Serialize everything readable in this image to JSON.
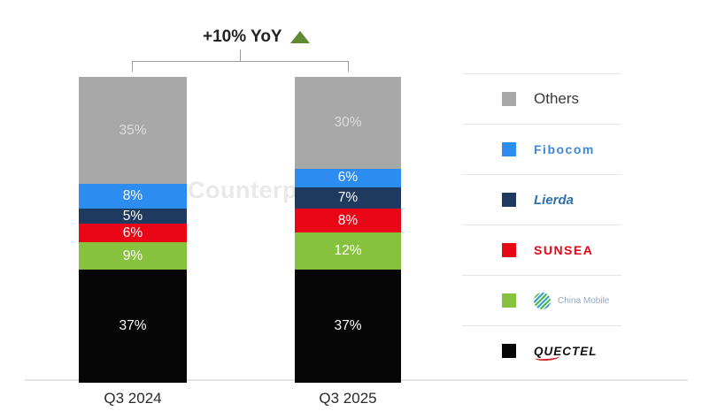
{
  "watermark": "Counterpoint",
  "annotation": {
    "label": "+10% YoY",
    "arrow_color": "#5e8b33"
  },
  "chart_data": {
    "type": "bar",
    "stacked": true,
    "title": "",
    "categories": [
      "Q3 2024",
      "Q3 2025"
    ],
    "series": [
      {
        "name": "Others",
        "color": "#a8a8a8",
        "label_color": "#dcdcdc",
        "values": [
          35,
          30
        ]
      },
      {
        "name": "Fibocom",
        "color": "#2d8cf0",
        "label_color": "#ffffff",
        "values": [
          8,
          6
        ]
      },
      {
        "name": "Lierda",
        "color": "#1e3a5f",
        "label_color": "#ffffff",
        "values": [
          5,
          7
        ]
      },
      {
        "name": "Sunsea",
        "color": "#e80617",
        "label_color": "#ffffff",
        "values": [
          6,
          8
        ]
      },
      {
        "name": "China Mobile",
        "color": "#87c23e",
        "label_color": "#ffffff",
        "values": [
          9,
          12
        ]
      },
      {
        "name": "Quectel",
        "color": "#060606",
        "label_color": "#ffffff",
        "values": [
          37,
          37
        ]
      }
    ],
    "value_format": "percent",
    "annotation": "+10% YoY",
    "legend_position": "right",
    "ylim": [
      0,
      100
    ],
    "grid": false
  },
  "legend": {
    "items": [
      {
        "label": "Others",
        "brand": "others",
        "swatch": "#a8a8a8"
      },
      {
        "label": "Fibocom",
        "brand": "fibocom",
        "swatch": "#2d8cf0"
      },
      {
        "label": "Lierda",
        "brand": "lierda",
        "swatch": "#1e3a5f"
      },
      {
        "label": "SUNSEA",
        "brand": "sunsea",
        "swatch": "#e80617"
      },
      {
        "label": "China Mobile",
        "brand": "china-mobile",
        "swatch": "#87c23e"
      },
      {
        "label": "QUECTEL",
        "brand": "quectel",
        "swatch": "#060606"
      }
    ]
  },
  "x_axis": {
    "labels": [
      "Q3 2024",
      "Q3 2025"
    ]
  }
}
